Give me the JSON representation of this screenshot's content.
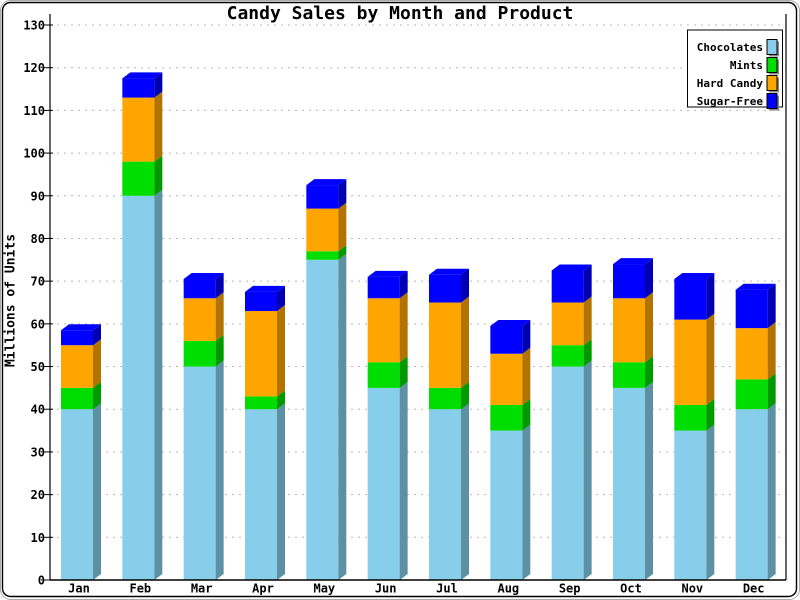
{
  "window": {
    "background": "#FFFFFF",
    "border_color": "#000000",
    "outer_edge_color": "#AAAAAA"
  },
  "chart_data": {
    "type": "bar",
    "subtype": "stacked-3d",
    "title": "Candy Sales by Month and Product",
    "xlabel": "",
    "ylabel": "Millions of Units",
    "ylim": [
      0,
      130
    ],
    "ytick_step": 10,
    "yticks": [
      0,
      10,
      20,
      30,
      40,
      50,
      60,
      70,
      80,
      90,
      100,
      110,
      120,
      130
    ],
    "grid": "horizontal-dashed",
    "gridline_color": "#B8B8B8",
    "axis_color": "#000000",
    "legend_position": "top-right-inside",
    "categories": [
      "Jan",
      "Feb",
      "Mar",
      "Apr",
      "May",
      "Jun",
      "Jul",
      "Aug",
      "Sep",
      "Oct",
      "Nov",
      "Dec"
    ],
    "series": [
      {
        "name": "Chocolates",
        "color": "#87CEEB",
        "values": [
          40,
          90,
          50,
          40,
          75,
          45,
          40,
          35,
          50,
          45,
          35,
          40
        ]
      },
      {
        "name": "Mints",
        "color": "#00DD00",
        "values": [
          5,
          8,
          6,
          3,
          2,
          6,
          5,
          6,
          5,
          6,
          6,
          7
        ]
      },
      {
        "name": "Hard Candy",
        "color": "#FFA500",
        "values": [
          10,
          15,
          10,
          20,
          10,
          15,
          20,
          12,
          10,
          15,
          20,
          12
        ]
      },
      {
        "name": "Sugar-Free",
        "color": "#0000FF",
        "values": [
          3.5,
          4.5,
          4.5,
          4.5,
          5.5,
          5,
          6.5,
          6.5,
          7.5,
          8,
          9.5,
          9
        ]
      }
    ],
    "totals": [
      58.5,
      117.5,
      70.5,
      67.5,
      92.5,
      71,
      71.5,
      59.5,
      72.5,
      74,
      70.5,
      68
    ]
  }
}
